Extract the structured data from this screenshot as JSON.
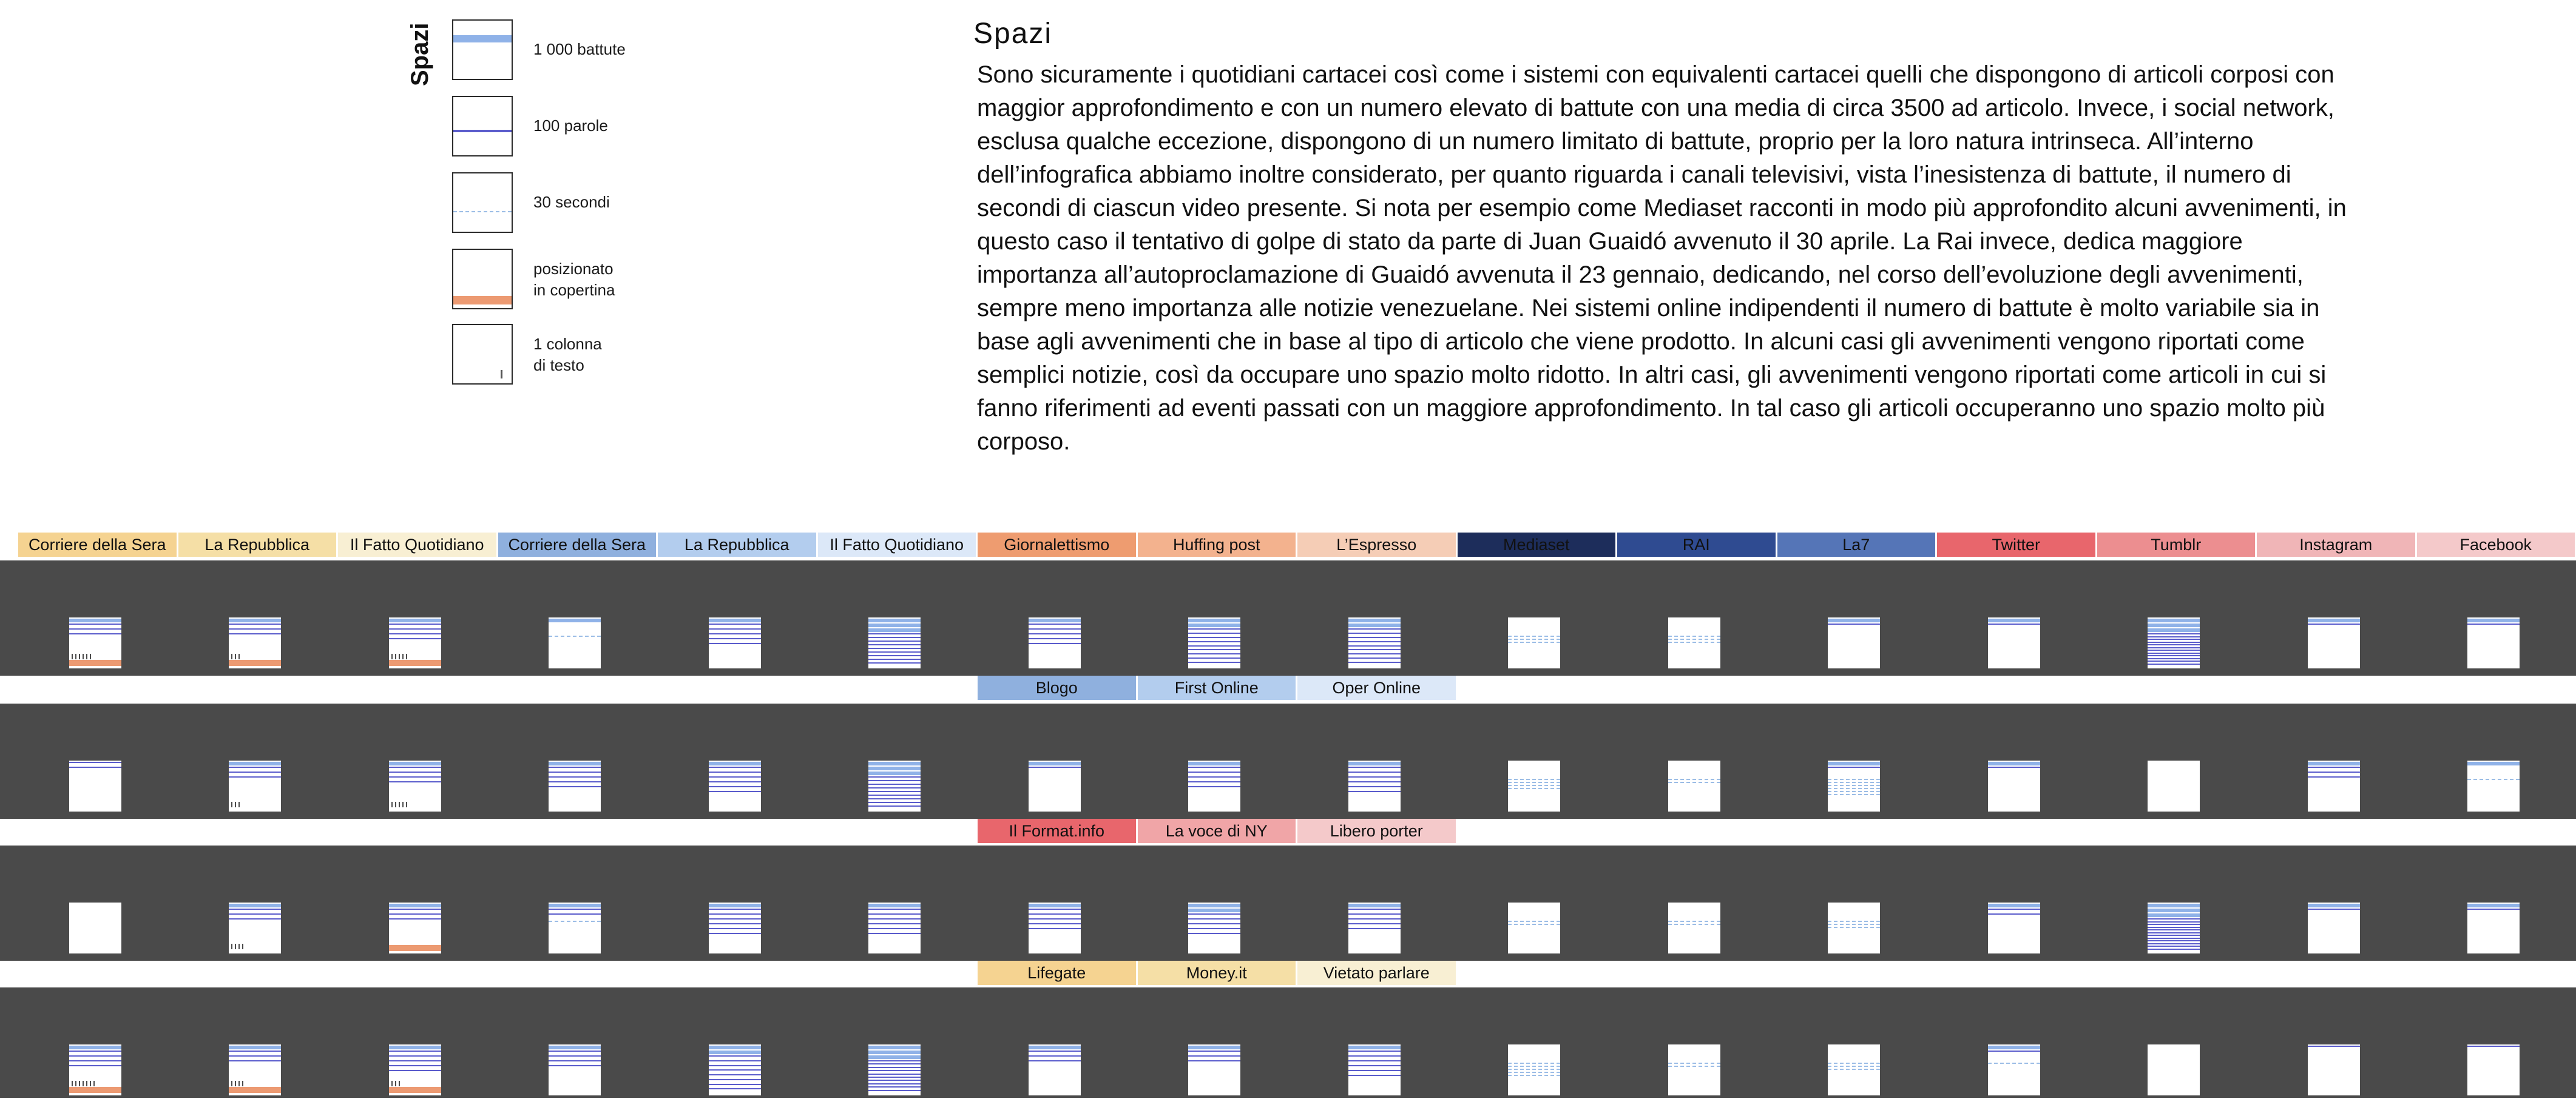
{
  "legend": {
    "title": "Spazi",
    "items": [
      {
        "label": "1 000 battute",
        "sample": "thousand"
      },
      {
        "label": "100 parole",
        "sample": "words"
      },
      {
        "label": "30 secondi",
        "sample": "seconds"
      },
      {
        "label": "posizionato\nin copertina",
        "sample": "cover"
      },
      {
        "label": "1 colonna\ndi testo",
        "sample": "column"
      }
    ]
  },
  "intro": {
    "title": "Spazi",
    "body": "Sono sicuramente i quotidiani cartacei così come i sistemi con equivalenti cartacei quelli che dispongono di articoli corposi con maggior approfondimento e con un numero elevato di battute con una media di circa 3500 ad articolo. Invece, i social network, esclusa qualche eccezione, dispongono di un numero limitato di battute, proprio per la loro natura intrinseca. All’interno dell’infografica abbiamo inoltre considerato, per quanto riguarda i canali televisivi, vista l’inesistenza di battute, il numero di secondi di ciascun video presente. Si nota per esempio come Mediaset racconti in modo più approfondito alcuni avvenimenti, in questo caso il tentativo di golpe di stato da parte di Juan Guaidó avvenuto il 30 aprile. La Rai invece, dedica maggiore importanza all’autoproclamazione di Guaidó avvenuta il 23 gennaio, dedicando, nel corso dell’evoluzione degli avvenimenti, sempre meno importanza alle notizie venezuelane. Nei sistemi online indipendenti il numero di battute è molto variabile sia in base agli avvenimenti che in base al tipo di articolo che viene prodotto. In alcuni casi gli avvenimenti vengono riportati come semplici notizie, così da occupare uno spazio molto ridotto. In altri casi, gli avvenimenti vengono riportati come articoli in cui si fanno riferimenti ad eventi passati con un maggiore approfondimento. In tal caso gli articoli occuperanno uno spazio molto più corposo."
  },
  "colors": {
    "thousand": "#8fb2e8",
    "words": "#5a5ccc",
    "seconds": "#9cbde6",
    "cover": "#ec9a72",
    "band": "#4a4a4a"
  },
  "header_rows": [
    [
      {
        "label": "Corriere della Sera",
        "color": "#f5d391"
      },
      {
        "label": "La Repubblica",
        "color": "#f5dfa6"
      },
      {
        "label": "Il Fatto Quotidiano",
        "color": "#f8efd3"
      },
      {
        "label": "Corriere della Sera",
        "color": "#8fb0de"
      },
      {
        "label": "La Repubblica",
        "color": "#b3cdee"
      },
      {
        "label": "Il Fatto Quotidiano",
        "color": "#dce8f8"
      },
      {
        "label": "Giornalettismo",
        "color": "#ee9c70"
      },
      {
        "label": "Huffing post",
        "color": "#f3b28e"
      },
      {
        "label": "L’Espresso",
        "color": "#f5cdb6"
      },
      {
        "label": "Mediaset",
        "color": "#1d2d5b"
      },
      {
        "label": "RAI",
        "color": "#2f4b91"
      },
      {
        "label": "La7",
        "color": "#5575b7"
      },
      {
        "label": "Twitter",
        "color": "#e8666c"
      },
      {
        "label": "Tumblr",
        "color": "#ec8e90"
      },
      {
        "label": "Instagram",
        "color": "#f0b5b7"
      },
      {
        "label": "Facebook",
        "color": "#f4c9ca"
      }
    ],
    [
      {
        "label": "Blogo",
        "color": "#8fb0de"
      },
      {
        "label": "First Online",
        "color": "#b3cdee"
      },
      {
        "label": "Oper Online",
        "color": "#dce8f8"
      }
    ],
    [
      {
        "label": "Il Format.info",
        "color": "#e8666c"
      },
      {
        "label": "La voce di NY",
        "color": "#f0a5a7"
      },
      {
        "label": "Libero porter",
        "color": "#f4c9ca"
      }
    ],
    [
      {
        "label": "Lifegate",
        "color": "#f5d391"
      },
      {
        "label": "Money.it",
        "color": "#f5dfa6"
      },
      {
        "label": "Vietato parlare",
        "color": "#f8efd3"
      }
    ]
  ],
  "bands": [
    {
      "thumbnails": [
        {
          "source": "Corriere della Sera",
          "thousand": 1,
          "words": 3,
          "seconds": 0,
          "cover": true,
          "columns": 6
        },
        {
          "source": "La Repubblica",
          "thousand": 1,
          "words": 3,
          "seconds": 0,
          "cover": true,
          "columns": 3
        },
        {
          "source": "Il Fatto Quotidiano",
          "thousand": 1,
          "words": 4,
          "seconds": 0,
          "cover": true,
          "columns": 5
        },
        {
          "source": "Corriere della Sera",
          "thousand": 1,
          "words": 0,
          "seconds": 1,
          "cover": false,
          "columns": 0
        },
        {
          "source": "La Repubblica",
          "thousand": 1,
          "words": 5,
          "seconds": 0,
          "cover": false,
          "columns": 0
        },
        {
          "source": "Il Fatto Quotidiano",
          "thousand": 3,
          "words": 9,
          "seconds": 0,
          "cover": false,
          "columns": 0
        },
        {
          "source": "Giornalettismo",
          "thousand": 1,
          "words": 5,
          "seconds": 0,
          "cover": false,
          "columns": 0
        },
        {
          "source": "Huffing post",
          "thousand": 2,
          "words": 9,
          "seconds": 0,
          "cover": false,
          "columns": 0
        },
        {
          "source": "L’Espresso",
          "thousand": 2,
          "words": 9,
          "seconds": 0,
          "cover": false,
          "columns": 0
        },
        {
          "source": "Mediaset",
          "thousand": 0,
          "words": 0,
          "seconds": 3,
          "cover": false,
          "columns": 0
        },
        {
          "source": "RAI",
          "thousand": 0,
          "words": 0,
          "seconds": 3,
          "cover": false,
          "columns": 0
        },
        {
          "source": "La7",
          "thousand": 1,
          "words": 1,
          "seconds": 0,
          "cover": false,
          "columns": 0
        },
        {
          "source": "Twitter",
          "thousand": 1,
          "words": 1,
          "seconds": 0,
          "cover": false,
          "columns": 0
        },
        {
          "source": "Tumblr",
          "thousand": 3,
          "words": 12,
          "seconds": 0,
          "cover": false,
          "columns": 0
        },
        {
          "source": "Instagram",
          "thousand": 1,
          "words": 1,
          "seconds": 0,
          "cover": false,
          "columns": 0
        },
        {
          "source": "Facebook",
          "thousand": 1,
          "words": 1,
          "seconds": 0,
          "cover": false,
          "columns": 0
        }
      ]
    },
    {
      "thumbnails": [
        {
          "source": "Corriere della Sera",
          "thousand": 0,
          "words": 2,
          "seconds": 0,
          "cover": false,
          "columns": 0
        },
        {
          "source": "La Repubblica",
          "thousand": 1,
          "words": 3,
          "seconds": 0,
          "cover": false,
          "columns": 3
        },
        {
          "source": "Il Fatto Quotidiano",
          "thousand": 1,
          "words": 4,
          "seconds": 0,
          "cover": false,
          "columns": 5
        },
        {
          "source": "Corriere della Sera",
          "thousand": 1,
          "words": 5,
          "seconds": 0,
          "cover": false,
          "columns": 0
        },
        {
          "source": "La Repubblica",
          "thousand": 1,
          "words": 6,
          "seconds": 0,
          "cover": false,
          "columns": 0
        },
        {
          "source": "Il Fatto Quotidiano",
          "thousand": 3,
          "words": 9,
          "seconds": 0,
          "cover": false,
          "columns": 0
        },
        {
          "source": "Blogo",
          "thousand": 1,
          "words": 1,
          "seconds": 0,
          "cover": false,
          "columns": 0
        },
        {
          "source": "First Online",
          "thousand": 1,
          "words": 5,
          "seconds": 0,
          "cover": false,
          "columns": 0
        },
        {
          "source": "Oper Online",
          "thousand": 1,
          "words": 6,
          "seconds": 0,
          "cover": false,
          "columns": 0
        },
        {
          "source": "Mediaset",
          "thousand": 0,
          "words": 0,
          "seconds": 4,
          "cover": false,
          "columns": 0
        },
        {
          "source": "RAI",
          "thousand": 0,
          "words": 0,
          "seconds": 2,
          "cover": false,
          "columns": 0
        },
        {
          "source": "La7",
          "thousand": 1,
          "words": 1,
          "seconds": 6,
          "cover": false,
          "columns": 0
        },
        {
          "source": "Twitter",
          "thousand": 1,
          "words": 1,
          "seconds": 0,
          "cover": false,
          "columns": 0
        },
        {
          "source": "Tumblr",
          "thousand": 0,
          "words": 0,
          "seconds": 0,
          "cover": false,
          "columns": 0
        },
        {
          "source": "Instagram",
          "thousand": 1,
          "words": 3,
          "seconds": 0,
          "cover": false,
          "columns": 0
        },
        {
          "source": "Facebook",
          "thousand": 1,
          "words": 0,
          "seconds": 1,
          "cover": false,
          "columns": 0
        }
      ]
    },
    {
      "thumbnails": [
        {
          "source": "Corriere della Sera",
          "thousand": 0,
          "words": 0,
          "seconds": 0,
          "cover": false,
          "columns": 0
        },
        {
          "source": "La Repubblica",
          "thousand": 1,
          "words": 3,
          "seconds": 0,
          "cover": false,
          "columns": 4
        },
        {
          "source": "Il Fatto Quotidiano",
          "thousand": 1,
          "words": 3,
          "seconds": 0,
          "cover": true,
          "columns": 0
        },
        {
          "source": "Corriere della Sera",
          "thousand": 1,
          "words": 2,
          "seconds": 1,
          "cover": false,
          "columns": 0
        },
        {
          "source": "La Repubblica",
          "thousand": 1,
          "words": 6,
          "seconds": 0,
          "cover": false,
          "columns": 0
        },
        {
          "source": "Il Fatto Quotidiano",
          "thousand": 1,
          "words": 6,
          "seconds": 0,
          "cover": false,
          "columns": 0
        },
        {
          "source": "Il Format.info",
          "thousand": 1,
          "words": 5,
          "seconds": 0,
          "cover": false,
          "columns": 0
        },
        {
          "source": "La voce di NY",
          "thousand": 2,
          "words": 5,
          "seconds": 0,
          "cover": false,
          "columns": 0
        },
        {
          "source": "Libero porter",
          "thousand": 1,
          "words": 5,
          "seconds": 0,
          "cover": false,
          "columns": 0
        },
        {
          "source": "Mediaset",
          "thousand": 0,
          "words": 0,
          "seconds": 2,
          "cover": false,
          "columns": 0
        },
        {
          "source": "RAI",
          "thousand": 0,
          "words": 0,
          "seconds": 2,
          "cover": false,
          "columns": 0
        },
        {
          "source": "La7",
          "thousand": 0,
          "words": 0,
          "seconds": 3,
          "cover": false,
          "columns": 0
        },
        {
          "source": "Twitter",
          "thousand": 1,
          "words": 2,
          "seconds": 0,
          "cover": false,
          "columns": 0
        },
        {
          "source": "Tumblr",
          "thousand": 3,
          "words": 12,
          "seconds": 0,
          "cover": false,
          "columns": 0
        },
        {
          "source": "Instagram",
          "thousand": 1,
          "words": 1,
          "seconds": 0,
          "cover": false,
          "columns": 0
        },
        {
          "source": "Facebook",
          "thousand": 1,
          "words": 1,
          "seconds": 0,
          "cover": false,
          "columns": 0
        }
      ]
    },
    {
      "thumbnails": [
        {
          "source": "Corriere della Sera",
          "thousand": 1,
          "words": 4,
          "seconds": 0,
          "cover": true,
          "columns": 7
        },
        {
          "source": "La Repubblica",
          "thousand": 1,
          "words": 3,
          "seconds": 0,
          "cover": true,
          "columns": 4
        },
        {
          "source": "Il Fatto Quotidiano",
          "thousand": 1,
          "words": 5,
          "seconds": 0,
          "cover": true,
          "columns": 3
        },
        {
          "source": "Corriere della Sera",
          "thousand": 1,
          "words": 4,
          "seconds": 0,
          "cover": false,
          "columns": 0
        },
        {
          "source": "La Repubblica",
          "thousand": 2,
          "words": 8,
          "seconds": 0,
          "cover": false,
          "columns": 0
        },
        {
          "source": "Il Fatto Quotidiano",
          "thousand": 3,
          "words": 10,
          "seconds": 0,
          "cover": false,
          "columns": 0
        },
        {
          "source": "Lifegate",
          "thousand": 1,
          "words": 3,
          "seconds": 0,
          "cover": false,
          "columns": 0
        },
        {
          "source": "Money.it",
          "thousand": 1,
          "words": 3,
          "seconds": 0,
          "cover": false,
          "columns": 0
        },
        {
          "source": "Vietato parlare",
          "thousand": 1,
          "words": 6,
          "seconds": 0,
          "cover": false,
          "columns": 0
        },
        {
          "source": "Mediaset",
          "thousand": 0,
          "words": 0,
          "seconds": 5,
          "cover": false,
          "columns": 0
        },
        {
          "source": "RAI",
          "thousand": 0,
          "words": 0,
          "seconds": 2,
          "cover": false,
          "columns": 0
        },
        {
          "source": "La7",
          "thousand": 0,
          "words": 0,
          "seconds": 3,
          "cover": false,
          "columns": 0
        },
        {
          "source": "Twitter",
          "thousand": 1,
          "words": 1,
          "seconds": 1,
          "cover": false,
          "columns": 0
        },
        {
          "source": "Tumblr",
          "thousand": 0,
          "words": 0,
          "seconds": 0,
          "cover": false,
          "columns": 0
        },
        {
          "source": "Instagram",
          "thousand": 0,
          "words": 1,
          "seconds": 0,
          "cover": false,
          "columns": 0
        },
        {
          "source": "Facebook",
          "thousand": 0,
          "words": 1,
          "seconds": 0,
          "cover": false,
          "columns": 0
        }
      ]
    }
  ]
}
